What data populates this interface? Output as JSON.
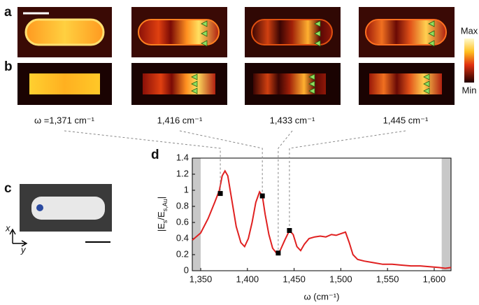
{
  "panel_labels": [
    "a",
    "b",
    "c",
    "d"
  ],
  "colorbar": {
    "max": "Max",
    "min": "Min"
  },
  "axes_labels": {
    "x": "x",
    "y": "y"
  },
  "wavenumber_labels": [
    "ω =1,371 cm⁻¹",
    "1,416 cm⁻¹",
    "1,433 cm⁻¹",
    "1,445 cm⁻¹"
  ],
  "chart_data": {
    "type": "line",
    "xlabel": "ω (cm⁻¹)",
    "ylabel_parts": [
      "|E",
      "s",
      "/E",
      "s,Au",
      "|"
    ],
    "xlim": [
      1341,
      1618
    ],
    "ylim": [
      0,
      1.4
    ],
    "xticks": [
      {
        "value": 1350,
        "label": "1,350"
      },
      {
        "value": 1400,
        "label": "1,400"
      },
      {
        "value": 1450,
        "label": "1,450"
      },
      {
        "value": 1500,
        "label": "1,500"
      },
      {
        "value": 1550,
        "label": "1,550"
      },
      {
        "value": 1600,
        "label": "1,600"
      }
    ],
    "yticks": [
      0,
      0.2,
      0.4,
      0.6,
      0.8,
      1,
      1.2,
      1.4
    ],
    "shaded_regions": [
      [
        1341,
        1350
      ],
      [
        1608,
        1618
      ]
    ],
    "series": [
      {
        "color": "#e02020",
        "x": [
          1341,
          1350,
          1358,
          1365,
          1370,
          1373,
          1376,
          1379,
          1383,
          1388,
          1393,
          1397,
          1401,
          1405,
          1409,
          1413,
          1416,
          1419,
          1423,
          1427,
          1431,
          1435,
          1440,
          1445,
          1449,
          1453,
          1457,
          1461,
          1466,
          1472,
          1478,
          1484,
          1490,
          1495,
          1500,
          1505,
          1509,
          1513,
          1518,
          1525,
          1535,
          1545,
          1555,
          1565,
          1575,
          1585,
          1595,
          1605,
          1612,
          1618
        ],
        "values": [
          0.38,
          0.47,
          0.65,
          0.85,
          1.0,
          1.18,
          1.24,
          1.18,
          0.9,
          0.55,
          0.35,
          0.3,
          0.4,
          0.6,
          0.85,
          0.98,
          0.93,
          0.7,
          0.45,
          0.28,
          0.22,
          0.25,
          0.38,
          0.5,
          0.45,
          0.3,
          0.25,
          0.33,
          0.4,
          0.42,
          0.43,
          0.42,
          0.45,
          0.44,
          0.46,
          0.48,
          0.35,
          0.2,
          0.14,
          0.12,
          0.1,
          0.08,
          0.08,
          0.07,
          0.06,
          0.06,
          0.05,
          0.04,
          0.03,
          0.04
        ]
      }
    ],
    "markers": {
      "x": [
        1371,
        1416,
        1433,
        1445
      ],
      "values": [
        0.96,
        0.93,
        0.22,
        0.5
      ]
    }
  }
}
